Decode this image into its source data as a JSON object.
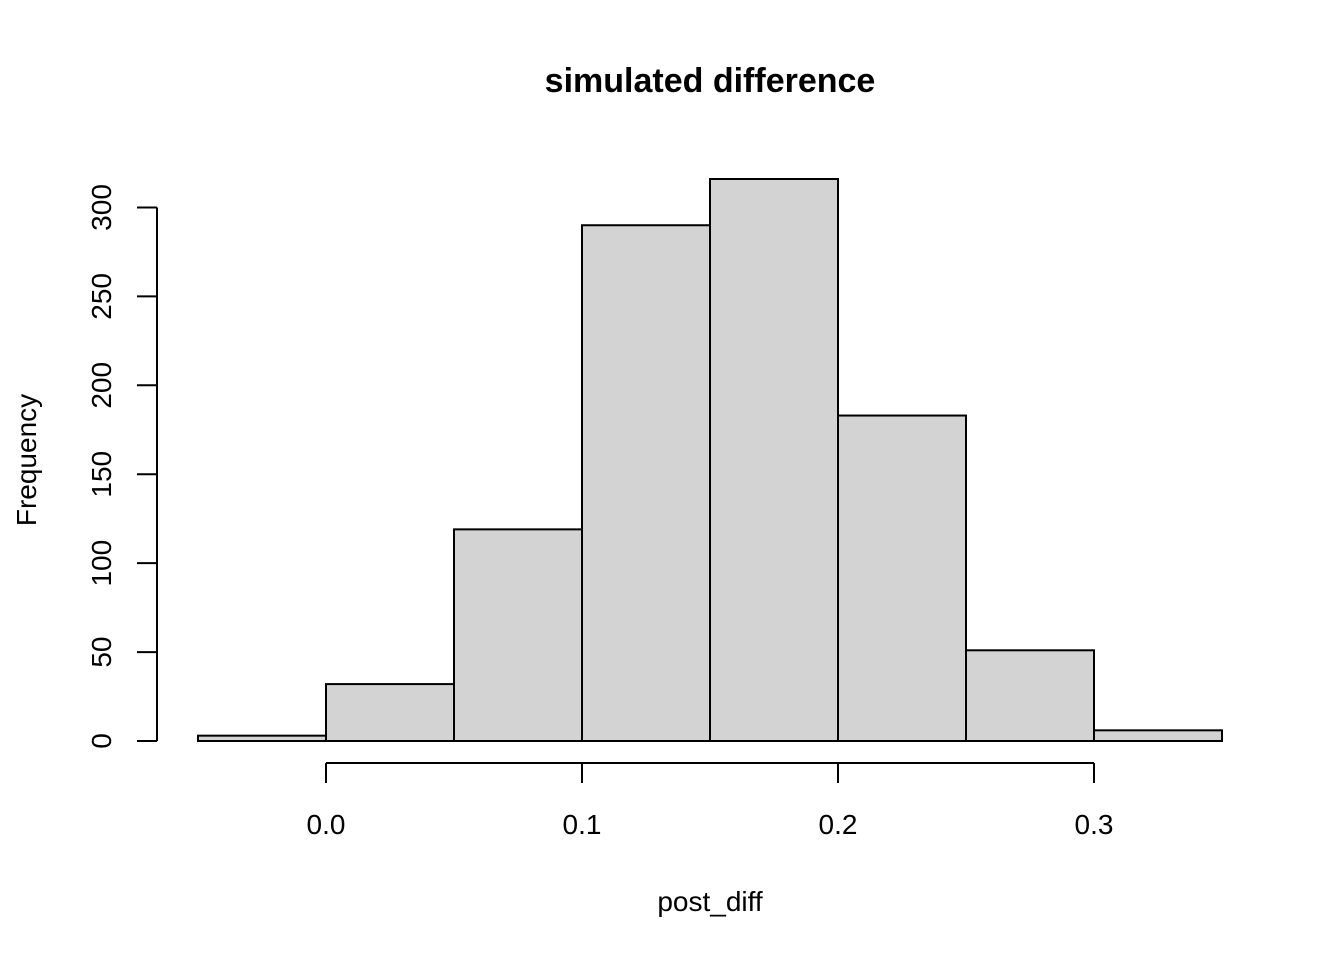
{
  "chart_data": {
    "type": "bar",
    "title": "simulated difference",
    "xlabel": "post_diff",
    "ylabel": "Frequency",
    "bins": [
      {
        "x0": -0.05,
        "x1": 0.0,
        "count": 3
      },
      {
        "x0": 0.0,
        "x1": 0.05,
        "count": 32
      },
      {
        "x0": 0.05,
        "x1": 0.1,
        "count": 119
      },
      {
        "x0": 0.1,
        "x1": 0.15,
        "count": 290
      },
      {
        "x0": 0.15,
        "x1": 0.2,
        "count": 316
      },
      {
        "x0": 0.2,
        "x1": 0.25,
        "count": 183
      },
      {
        "x0": 0.25,
        "x1": 0.3,
        "count": 51
      },
      {
        "x0": 0.3,
        "x1": 0.35,
        "count": 6
      }
    ],
    "xlim": [
      -0.05,
      0.35
    ],
    "ylim": [
      0,
      316
    ],
    "x_ticks": [
      0.0,
      0.1,
      0.2,
      0.3
    ],
    "x_tick_labels": [
      "0.0",
      "0.1",
      "0.2",
      "0.3"
    ],
    "y_ticks": [
      0,
      50,
      100,
      150,
      200,
      250,
      300
    ],
    "y_tick_labels": [
      "0",
      "50",
      "100",
      "150",
      "200",
      "250",
      "300"
    ],
    "bar_color": "#d3d3d3",
    "edge_color": "#000000",
    "grid": false,
    "legend": "none"
  }
}
